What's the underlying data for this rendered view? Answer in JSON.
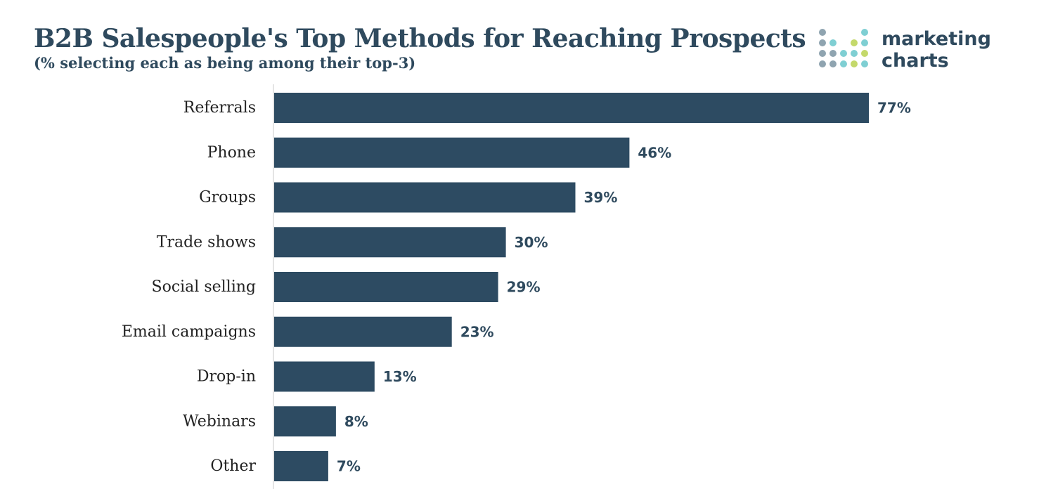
{
  "logo": {
    "line1": "marketing",
    "line2": "charts"
  },
  "colors": {
    "bar": "#2d4b62",
    "text": "#2f4a5e",
    "axis": "#c9c9c9",
    "logo_dots": [
      "#8fa4b0",
      "#7fcfd3",
      "#c4d96b"
    ]
  },
  "chart_data": {
    "type": "bar",
    "orientation": "horizontal",
    "title": "B2B Salespeople's Top Methods for Reaching Prospects",
    "subtitle": "(% selecting each as being among their top-3)",
    "categories": [
      "Referrals",
      "Phone",
      "Groups",
      "Trade shows",
      "Social selling",
      "Email campaigns",
      "Drop-in",
      "Webinars",
      "Other"
    ],
    "values": [
      77,
      46,
      39,
      30,
      29,
      23,
      13,
      8,
      7
    ],
    "value_labels": [
      "77%",
      "46%",
      "39%",
      "30%",
      "29%",
      "23%",
      "13%",
      "8%",
      "7%"
    ],
    "xlim": [
      0,
      100
    ],
    "grid": false,
    "legend": "none"
  }
}
